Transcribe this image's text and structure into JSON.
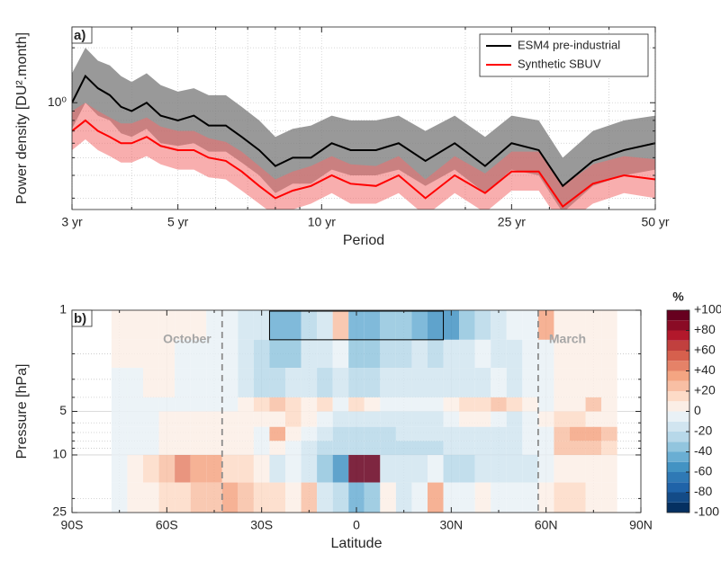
{
  "chart_data": [
    {
      "type": "line_band",
      "panel_label": "a)",
      "xlabel": "Period",
      "ylabel": "Power density [DU².month]",
      "xscale": "log",
      "yscale": "log",
      "xlim": [
        3,
        50
      ],
      "ylim": [
        0.26,
        2.6
      ],
      "xticks": [
        {
          "value": 3,
          "label": "3 yr"
        },
        {
          "value": 5,
          "label": "5 yr"
        },
        {
          "value": 10,
          "label": "10 yr"
        },
        {
          "value": 25,
          "label": "25 yr"
        },
        {
          "value": 50,
          "label": "50 yr"
        }
      ],
      "xticks_minor": [
        4,
        6,
        7,
        8,
        9,
        20,
        30,
        40
      ],
      "yticks": [
        {
          "value": 1,
          "label": "10⁰"
        }
      ],
      "yticks_minor": [
        0.3,
        0.4,
        0.5,
        0.6,
        0.7,
        0.8,
        0.9,
        2
      ],
      "grid": true,
      "legend": "upper right",
      "x": [
        3,
        3.2,
        3.4,
        3.6,
        3.8,
        4,
        4.3,
        4.6,
        5,
        5.4,
        5.8,
        6.3,
        6.8,
        7.4,
        8,
        8.7,
        9.5,
        10.5,
        11.5,
        13,
        14.5,
        16.5,
        19,
        22,
        25,
        28.5,
        32,
        37,
        43,
        50
      ],
      "series": [
        {
          "name": "ESM4 pre-industrial",
          "color": "#000000",
          "band_color": "#7f7f7f",
          "values": [
            1.0,
            1.4,
            1.2,
            1.1,
            0.95,
            0.9,
            1.0,
            0.85,
            0.8,
            0.85,
            0.75,
            0.75,
            0.65,
            0.55,
            0.45,
            0.5,
            0.5,
            0.6,
            0.55,
            0.55,
            0.6,
            0.48,
            0.6,
            0.45,
            0.6,
            0.55,
            0.35,
            0.48,
            0.55,
            0.6
          ],
          "lower": [
            0.72,
            1.0,
            0.85,
            0.8,
            0.68,
            0.65,
            0.72,
            0.6,
            0.58,
            0.6,
            0.54,
            0.54,
            0.47,
            0.4,
            0.32,
            0.36,
            0.36,
            0.43,
            0.4,
            0.4,
            0.43,
            0.35,
            0.43,
            0.32,
            0.43,
            0.4,
            0.25,
            0.35,
            0.4,
            0.43
          ],
          "upper": [
            1.45,
            2.0,
            1.7,
            1.6,
            1.4,
            1.3,
            1.45,
            1.25,
            1.15,
            1.2,
            1.1,
            1.1,
            0.95,
            0.8,
            0.65,
            0.72,
            0.75,
            0.85,
            0.8,
            0.8,
            0.85,
            0.7,
            0.85,
            0.65,
            0.85,
            0.8,
            0.5,
            0.7,
            0.8,
            0.85
          ]
        },
        {
          "name": "Synthetic SBUV",
          "color": "#ff0000",
          "band_color": "#f26b6b",
          "values": [
            0.7,
            0.8,
            0.7,
            0.65,
            0.6,
            0.6,
            0.65,
            0.58,
            0.55,
            0.55,
            0.5,
            0.48,
            0.42,
            0.35,
            0.3,
            0.33,
            0.35,
            0.4,
            0.36,
            0.35,
            0.4,
            0.3,
            0.4,
            0.32,
            0.42,
            0.42,
            0.27,
            0.36,
            0.4,
            0.38
          ],
          "lower": [
            0.55,
            0.63,
            0.55,
            0.51,
            0.47,
            0.47,
            0.51,
            0.46,
            0.43,
            0.43,
            0.39,
            0.38,
            0.33,
            0.28,
            0.24,
            0.26,
            0.28,
            0.32,
            0.28,
            0.28,
            0.32,
            0.24,
            0.32,
            0.25,
            0.33,
            0.33,
            0.21,
            0.28,
            0.32,
            0.3
          ],
          "upper": [
            0.9,
            1.0,
            0.9,
            0.83,
            0.77,
            0.77,
            0.83,
            0.74,
            0.7,
            0.7,
            0.64,
            0.61,
            0.54,
            0.45,
            0.38,
            0.42,
            0.45,
            0.51,
            0.46,
            0.45,
            0.51,
            0.38,
            0.51,
            0.41,
            0.54,
            0.54,
            0.35,
            0.46,
            0.51,
            0.49
          ]
        }
      ]
    },
    {
      "type": "heatmap",
      "panel_label": "b)",
      "xlabel": "Latitude",
      "ylabel": "Pressure [hPa]",
      "xlim": [
        -90,
        90
      ],
      "ylim": [
        1,
        25
      ],
      "yscale": "log",
      "xticks": [
        {
          "value": -90,
          "label": "90S"
        },
        {
          "value": -60,
          "label": "60S"
        },
        {
          "value": -30,
          "label": "30S"
        },
        0,
        {
          "value": 30,
          "label": "30N"
        },
        {
          "value": 60,
          "label": "60N"
        },
        {
          "value": 90,
          "label": "90N"
        }
      ],
      "xticks_minor": [
        -75,
        -45,
        -15,
        15,
        45,
        75
      ],
      "yticks": [
        1,
        5,
        10,
        25
      ],
      "yticks_minor": [
        2,
        3,
        4,
        6,
        7,
        8,
        9,
        20
      ],
      "x_edges": [
        -77.5,
        -72.5,
        -67.5,
        -62.5,
        -57.5,
        -52.5,
        -47.5,
        -42.5,
        -37.5,
        -32.5,
        -27.5,
        -22.5,
        -17.5,
        -12.5,
        -7.5,
        -2.5,
        2.5,
        7.5,
        12.5,
        17.5,
        22.5,
        27.5,
        32.5,
        37.5,
        42.5,
        47.5,
        52.5,
        57.5,
        62.5,
        67.5,
        72.5,
        77.5,
        82.5
      ],
      "y_edges": [
        1,
        1.6,
        2.5,
        4,
        5,
        6.4,
        8,
        10,
        15.5,
        25
      ],
      "values": [
        [
          5,
          8,
          8,
          5,
          5,
          3,
          -5,
          -10,
          -20,
          -15,
          -50,
          -50,
          -30,
          -20,
          20,
          -50,
          -50,
          -40,
          -40,
          -50,
          -55,
          -60,
          -40,
          -30,
          -20,
          -10,
          -5,
          30,
          5,
          8,
          8,
          8
        ],
        [
          3,
          5,
          5,
          3,
          -5,
          -5,
          -5,
          -10,
          -20,
          -30,
          -40,
          -40,
          -20,
          -15,
          -10,
          -40,
          -40,
          -30,
          -30,
          -20,
          -30,
          -20,
          -20,
          -10,
          -15,
          -20,
          -5,
          -10,
          5,
          5,
          5,
          5
        ],
        [
          -5,
          -5,
          3,
          3,
          -5,
          -10,
          -10,
          -10,
          -20,
          -25,
          -30,
          -20,
          -15,
          -25,
          -20,
          -30,
          -30,
          -20,
          -20,
          -20,
          -15,
          -15,
          -20,
          -15,
          -10,
          -20,
          -10,
          -5,
          3,
          5,
          5,
          5
        ],
        [
          -5,
          -5,
          -5,
          -5,
          -5,
          -5,
          -5,
          -5,
          5,
          10,
          20,
          10,
          5,
          10,
          -10,
          10,
          5,
          -10,
          -5,
          -10,
          -10,
          5,
          10,
          15,
          20,
          10,
          5,
          -5,
          3,
          5,
          20,
          5
        ],
        [
          -5,
          -5,
          -5,
          3,
          3,
          3,
          3,
          5,
          5,
          5,
          5,
          10,
          5,
          -10,
          -20,
          -20,
          -20,
          -20,
          -20,
          -20,
          -20,
          -10,
          5,
          5,
          -10,
          -15,
          -10,
          5,
          10,
          10,
          5,
          5
        ],
        [
          -5,
          -5,
          -5,
          3,
          3,
          5,
          3,
          5,
          3,
          -5,
          30,
          5,
          -10,
          -20,
          -30,
          -30,
          -30,
          -30,
          -20,
          -20,
          -20,
          -20,
          -20,
          -20,
          -20,
          -15,
          -5,
          -10,
          20,
          30,
          30,
          20
        ],
        [
          -5,
          -5,
          -5,
          3,
          3,
          5,
          3,
          3,
          3,
          -5,
          5,
          -10,
          -20,
          -30,
          -30,
          -30,
          -30,
          -30,
          -30,
          -30,
          -30,
          -20,
          -20,
          -20,
          -20,
          -15,
          -10,
          -5,
          20,
          20,
          20,
          10
        ],
        [
          -5,
          5,
          10,
          20,
          40,
          30,
          30,
          15,
          10,
          5,
          -20,
          -10,
          -20,
          -40,
          -60,
          100,
          100,
          -20,
          -20,
          -20,
          -10,
          -30,
          -30,
          -20,
          -20,
          -20,
          -20,
          -5,
          5,
          5,
          3,
          3
        ],
        [
          -5,
          3,
          5,
          10,
          15,
          20,
          20,
          30,
          20,
          10,
          15,
          5,
          20,
          -20,
          -30,
          -50,
          -40,
          5,
          -20,
          -10,
          30,
          -10,
          -5,
          5,
          -10,
          -5,
          -5,
          5,
          10,
          10,
          5,
          5
        ]
      ],
      "clim": [
        -100,
        100
      ],
      "colormap": [
        "#053061",
        "#134b87",
        "#1f63a8",
        "#2f79b5",
        "#4393c3",
        "#6aaed3",
        "#92c5de",
        "#b7d8e9",
        "#d1e5f0",
        "#e9f1f6",
        "#fbeee6",
        "#fddbc7",
        "#f8bfa4",
        "#f4a582",
        "#e58268",
        "#d6604d",
        "#c1403e",
        "#b2182b",
        "#8a0b25",
        "#67001f"
      ],
      "colorbar_label": "%",
      "colorbar_ticks": [
        {
          "value": 100,
          "label": "+100"
        },
        {
          "value": 80,
          "label": "+80"
        },
        {
          "value": 60,
          "label": "+60"
        },
        {
          "value": 40,
          "label": "+40"
        },
        {
          "value": 20,
          "label": "+20"
        },
        0,
        -20,
        -40,
        -60,
        -80,
        -100
      ],
      "markers": [
        {
          "label": "October",
          "lat": -42.5
        },
        {
          "label": "March",
          "lat": 57.5
        }
      ],
      "box": {
        "lat": [
          -27.5,
          27.5
        ],
        "pressure": [
          1,
          1.6
        ]
      }
    }
  ]
}
